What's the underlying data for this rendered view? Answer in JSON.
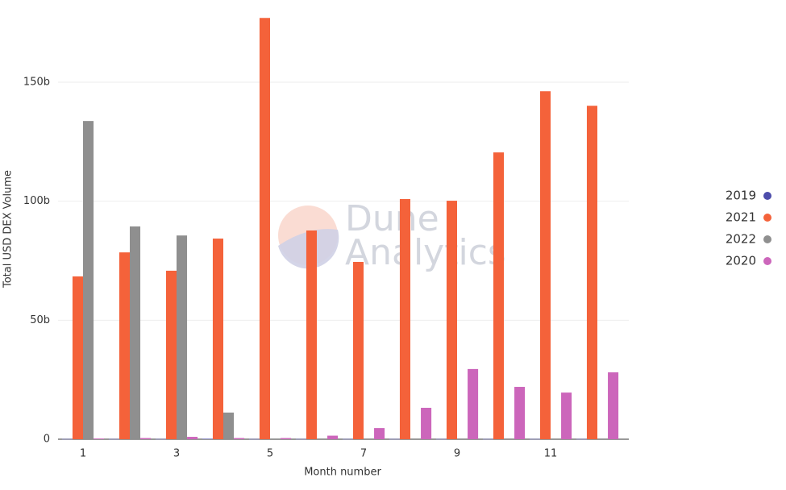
{
  "chart_data": {
    "type": "bar",
    "x_label": "Month number",
    "y_label": "Total USD DEX Volume",
    "watermark": [
      "Dune",
      "Analytics"
    ],
    "x": [
      1,
      2,
      3,
      4,
      5,
      6,
      7,
      8,
      9,
      10,
      11,
      12
    ],
    "xlim": [
      0.5,
      12.5
    ],
    "xticks": [
      1,
      3,
      5,
      7,
      9,
      11
    ],
    "ylim": [
      0,
      180
    ],
    "yticks": [
      0,
      {
        "value": 50,
        "label": "50b"
      },
      {
        "value": 100,
        "label": "100b"
      },
      {
        "value": 150,
        "label": "150b"
      }
    ],
    "grid": true,
    "legend": "right",
    "series": [
      {
        "name": "2019",
        "color": "#4d4dab",
        "values": [
          0.1,
          0.1,
          0.1,
          0.2,
          0.1,
          0.1,
          0.1,
          0.1,
          0.1,
          0.1,
          0.1,
          0.1
        ]
      },
      {
        "name": "2021",
        "color": "#f4623a",
        "values": [
          68.4,
          78.5,
          70.8,
          84.3,
          177,
          87.7,
          74.5,
          100.9,
          100.2,
          120.5,
          146.2,
          140.1
        ]
      },
      {
        "name": "2022",
        "color": "#8f8f8f",
        "values": [
          133.7,
          89.4,
          85.6,
          11.2,
          null,
          null,
          null,
          null,
          null,
          null,
          null,
          null
        ]
      },
      {
        "name": "2020",
        "color": "#cc66bb",
        "values": [
          0.3,
          0.5,
          1,
          0.5,
          0.5,
          1.5,
          4.7,
          13.2,
          29.5,
          22,
          19.6,
          28.1
        ]
      }
    ]
  }
}
